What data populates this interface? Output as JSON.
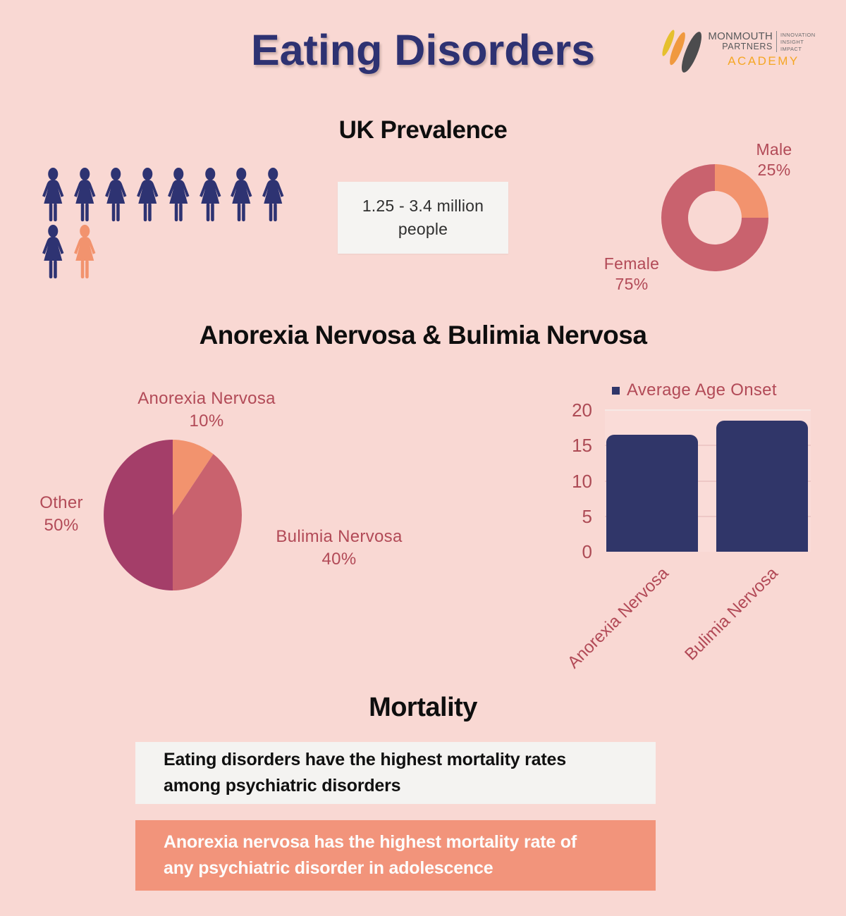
{
  "header": {
    "title": "Eating Disorders"
  },
  "logo": {
    "name_line1": "MONMOUTH",
    "name_line2": "PARTNERS",
    "tag1": "INNOVATION",
    "tag2": "INSIGHT",
    "tag3": "IMPACT",
    "academy": "ACADEMY"
  },
  "sections": {
    "prevalence_heading": "UK Prevalence",
    "disorders_heading": "Anorexia Nervosa & Bulimia Nervosa",
    "mortality_heading": "Mortality"
  },
  "prevalence": {
    "info_line1": "1.25 - 3.4 million",
    "info_line2": "people",
    "pictogram": {
      "rows": [
        8,
        2
      ],
      "total": 10,
      "highlight_last": true
    }
  },
  "mortality": {
    "box1_text": "Eating disorders have the highest mortality rates among psychiatric disorders",
    "box2_text": "Anorexia nervosa has the highest mortality rate of any psychiatric disorder in adolescence"
  },
  "colors": {
    "background": "#f9d8d3",
    "navy": "#2e3372",
    "salmon": "#f2936e",
    "rose": "#c9626e",
    "plum": "#a43e69",
    "label_rose": "#b24a57",
    "box_light": "#f4f3f1",
    "box_salmon": "#f2947b",
    "logo_gray": "#58595b",
    "logo_orange": "#f5a623",
    "logo_yellow": "#e5c02e",
    "logo_dark": "#4c4c4e"
  },
  "chart_data": [
    {
      "id": "sex_donut",
      "type": "pie",
      "variant": "donut",
      "segments": [
        {
          "label": "Male",
          "value": 25,
          "pct_label": "25%",
          "color": "#f2936e"
        },
        {
          "label": "Female",
          "value": 75,
          "pct_label": "75%",
          "color": "#c9626e"
        }
      ],
      "start_angle_deg": 0,
      "clockwise": true,
      "labels_position": "outside"
    },
    {
      "id": "disorder_pie",
      "type": "pie",
      "segments": [
        {
          "label": "Anorexia Nervosa",
          "value": 10,
          "pct_label": "10%",
          "color": "#f2936e"
        },
        {
          "label": "Bulimia Nervosa",
          "value": 40,
          "pct_label": "40%",
          "color": "#c9626e"
        },
        {
          "label": "Other",
          "value": 50,
          "pct_label": "50%",
          "color": "#a43e69"
        }
      ],
      "start_angle_deg": 0,
      "clockwise": true,
      "labels_position": "outside"
    },
    {
      "id": "onset_bar",
      "type": "bar",
      "title": "Average Age Onset",
      "categories": [
        "Anorexia Nervosa",
        "Bulimia Nervosa"
      ],
      "values": [
        16.5,
        18.5
      ],
      "bar_color": "#303669",
      "ylim": [
        0,
        20
      ],
      "yticks": [
        0,
        5,
        10,
        15,
        20
      ],
      "grid": true,
      "legend_position": "top",
      "xlabel_rotation_deg": -45
    }
  ]
}
